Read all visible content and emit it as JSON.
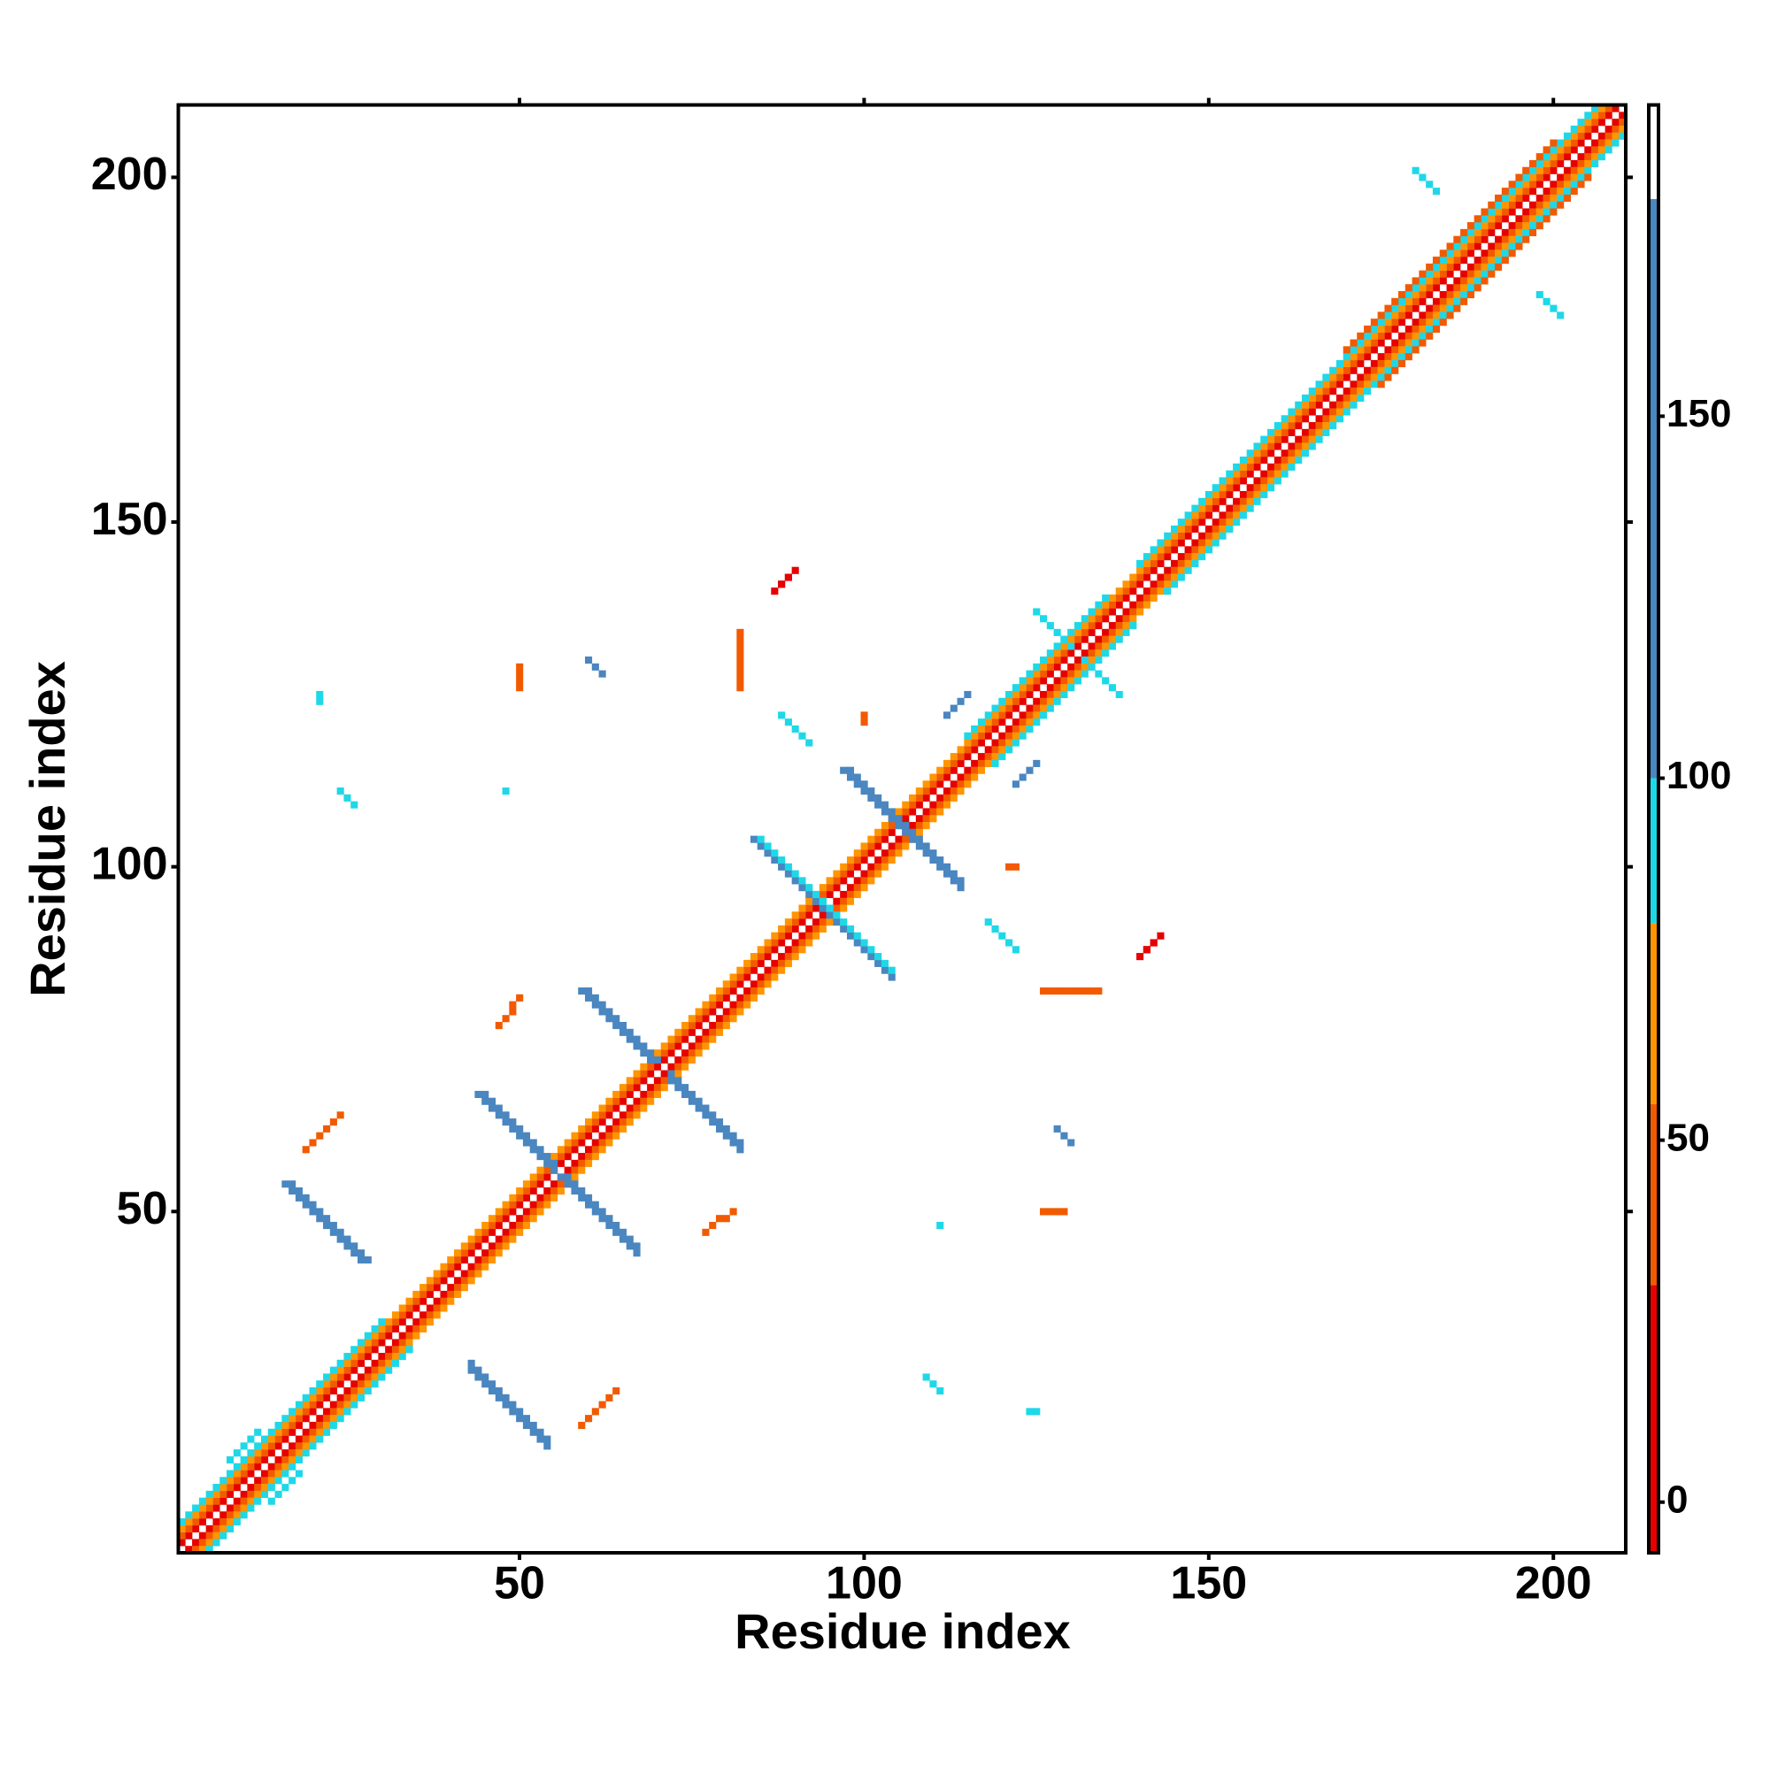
{
  "chart_data": {
    "type": "heatmap",
    "xlabel": "Residue index",
    "ylabel": "Residue index",
    "xlim": [
      0.5,
      210.5
    ],
    "ylim": [
      0.5,
      210.5
    ],
    "xticks": [
      50,
      100,
      150,
      200
    ],
    "yticks": [
      50,
      100,
      150,
      200
    ],
    "symmetric": true,
    "segments": [
      {
        "x": [
          1,
          209
        ],
        "y": [
          2,
          210
        ],
        "value": 10
      },
      {
        "x": [
          1,
          208
        ],
        "y": [
          3,
          210
        ],
        "value": 45
      },
      {
        "x": [
          1,
          207
        ],
        "y": [
          4,
          210
        ],
        "value": 65
      },
      {
        "x": [
          1,
          30
        ],
        "y": [
          5,
          34
        ],
        "value": 90
      },
      {
        "x": [
          115,
          135
        ],
        "y": [
          119,
          139
        ],
        "value": 90
      },
      {
        "x": [
          140,
          206
        ],
        "y": [
          144,
          210
        ],
        "value": 90
      },
      {
        "x": [
          170,
          200
        ],
        "y": [
          175,
          205
        ],
        "value": 40
      },
      {
        "x": [
          16,
          27
        ],
        "y": [
          54,
          43
        ],
        "value": 130
      },
      {
        "x": [
          17,
          28
        ],
        "y": [
          54,
          43
        ],
        "value": 130
      },
      {
        "x": [
          44,
          55
        ],
        "y": [
          67,
          56
        ],
        "value": 130
      },
      {
        "x": [
          45,
          55
        ],
        "y": [
          67,
          57
        ],
        "value": 130
      },
      {
        "x": [
          59,
          69
        ],
        "y": [
          82,
          72
        ],
        "value": 130
      },
      {
        "x": [
          60,
          70
        ],
        "y": [
          82,
          72
        ],
        "value": 130
      },
      {
        "x": [
          84,
          94
        ],
        "y": [
          104,
          94
        ],
        "value": 130
      },
      {
        "x": [
          85,
          95
        ],
        "y": [
          104,
          94
        ],
        "value": 95
      },
      {
        "x": [
          97,
          105
        ],
        "y": [
          114,
          106
        ],
        "value": 130
      },
      {
        "x": [
          98,
          106
        ],
        "y": [
          114,
          106
        ],
        "value": 130
      },
      {
        "x": [
          87,
          89
        ],
        "y": [
          140,
          142
        ],
        "value": 5
      },
      {
        "x": [
          88,
          90
        ],
        "y": [
          141,
          143
        ],
        "value": 20
      },
      {
        "x": [
          24,
          26
        ],
        "y": [
          111,
          109
        ],
        "value": 95
      },
      {
        "x": [
          19,
          24
        ],
        "y": [
          59,
          64
        ],
        "value": 45
      },
      {
        "x": [
          47,
          50
        ],
        "y": [
          77,
          81
        ],
        "value": 45
      },
      {
        "x": [
          82,
          82
        ],
        "y": [
          126,
          134
        ],
        "value": 45
      },
      {
        "x": [
          50,
          50
        ],
        "y": [
          126,
          129
        ],
        "value": 50
      },
      {
        "x": [
          100,
          100
        ],
        "y": [
          121,
          122
        ],
        "value": 30
      },
      {
        "x": [
          88,
          92
        ],
        "y": [
          122,
          118
        ],
        "value": 95
      },
      {
        "x": [
          60,
          62
        ],
        "y": [
          130,
          128
        ],
        "value": 130
      },
      {
        "x": [
          21,
          21
        ],
        "y": [
          125,
          124
        ],
        "value": 95
      },
      {
        "x": [
          48,
          48
        ],
        "y": [
          111,
          111
        ],
        "value": 95
      },
      {
        "x": [
          180,
          183
        ],
        "y": [
          201,
          198
        ],
        "value": 95
      },
      {
        "x": [
          125,
          130
        ],
        "y": [
          137,
          132
        ],
        "value": 95
      },
      {
        "x": [
          8,
          12
        ],
        "y": [
          14,
          18
        ],
        "value": 95
      },
      {
        "x": [
          112,
          115
        ],
        "y": [
          122,
          125
        ],
        "value": 130
      }
    ],
    "colorbar": {
      "lim": [
        -7,
        193
      ],
      "ticks": [
        0,
        50,
        100,
        150
      ],
      "bins": [
        -7,
        30,
        55,
        80,
        100,
        180,
        193
      ],
      "colors": [
        "#e60000",
        "#f25a00",
        "#ff9500",
        "#1ed8e8",
        "#4a86c0",
        "#ffffff"
      ]
    }
  }
}
